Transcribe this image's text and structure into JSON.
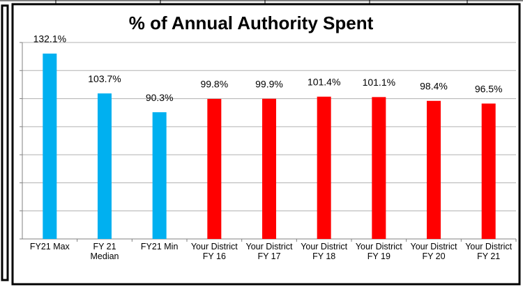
{
  "chart_data": {
    "type": "bar",
    "title": "% of Annual Authority Spent",
    "categories": [
      "FY21 Max",
      "FY 21 Median",
      "FY21 Min",
      "Your District FY 16",
      "Your District FY 17",
      "Your District FY 18",
      "Your District FY 19",
      "Your District FY 20",
      "Your District FY 21"
    ],
    "values": [
      132.1,
      103.7,
      90.3,
      99.8,
      99.9,
      101.4,
      101.1,
      98.4,
      96.5
    ],
    "value_labels": [
      "132.1%",
      "103.7%",
      "90.3%",
      "99.8%",
      "99.9%",
      "101.4%",
      "101.1%",
      "98.4%",
      "96.5%"
    ],
    "colors": [
      "#00b0f0",
      "#00b0f0",
      "#00b0f0",
      "#ff0000",
      "#ff0000",
      "#ff0000",
      "#ff0000",
      "#ff0000",
      "#ff0000"
    ],
    "ylim": [
      0,
      140
    ],
    "yticks": [
      0,
      20,
      40,
      60,
      80,
      100,
      120,
      140
    ],
    "grid": true
  }
}
